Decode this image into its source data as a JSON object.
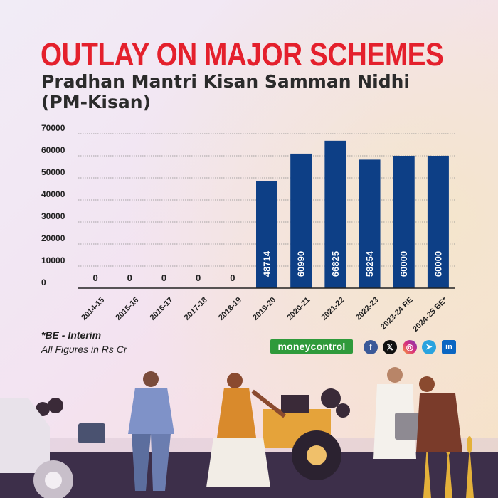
{
  "title": "OUTLAY ON MAJOR SCHEMES",
  "subtitle": "Pradhan Mantri Kisan Samman Nidhi (PM-Kisan)",
  "footnote": "*BE - Interim",
  "units_note": "All Figures in Rs Cr",
  "brand": "moneycontrol",
  "social_icons": [
    "facebook-icon",
    "x-icon",
    "instagram-icon",
    "telegram-icon",
    "linkedin-icon"
  ],
  "colors": {
    "title": "#e4202c",
    "bar": "#0d3f86",
    "brand": "#2f9a3b"
  },
  "chart_data": {
    "type": "bar",
    "categories": [
      "2014-15",
      "2015-16",
      "2016-17",
      "2017-18",
      "2018-19",
      "2019-20",
      "2020-21",
      "2021-22",
      "2022-23",
      "2023-24 RE",
      "2024-25 BE*"
    ],
    "values": [
      0,
      0,
      0,
      0,
      0,
      48714,
      60990,
      66825,
      58254,
      60000,
      60000
    ],
    "ylim": [
      0,
      70000
    ],
    "yticks": [
      0,
      10000,
      20000,
      30000,
      40000,
      50000,
      60000,
      70000
    ],
    "grid": true,
    "data_labels": true
  }
}
